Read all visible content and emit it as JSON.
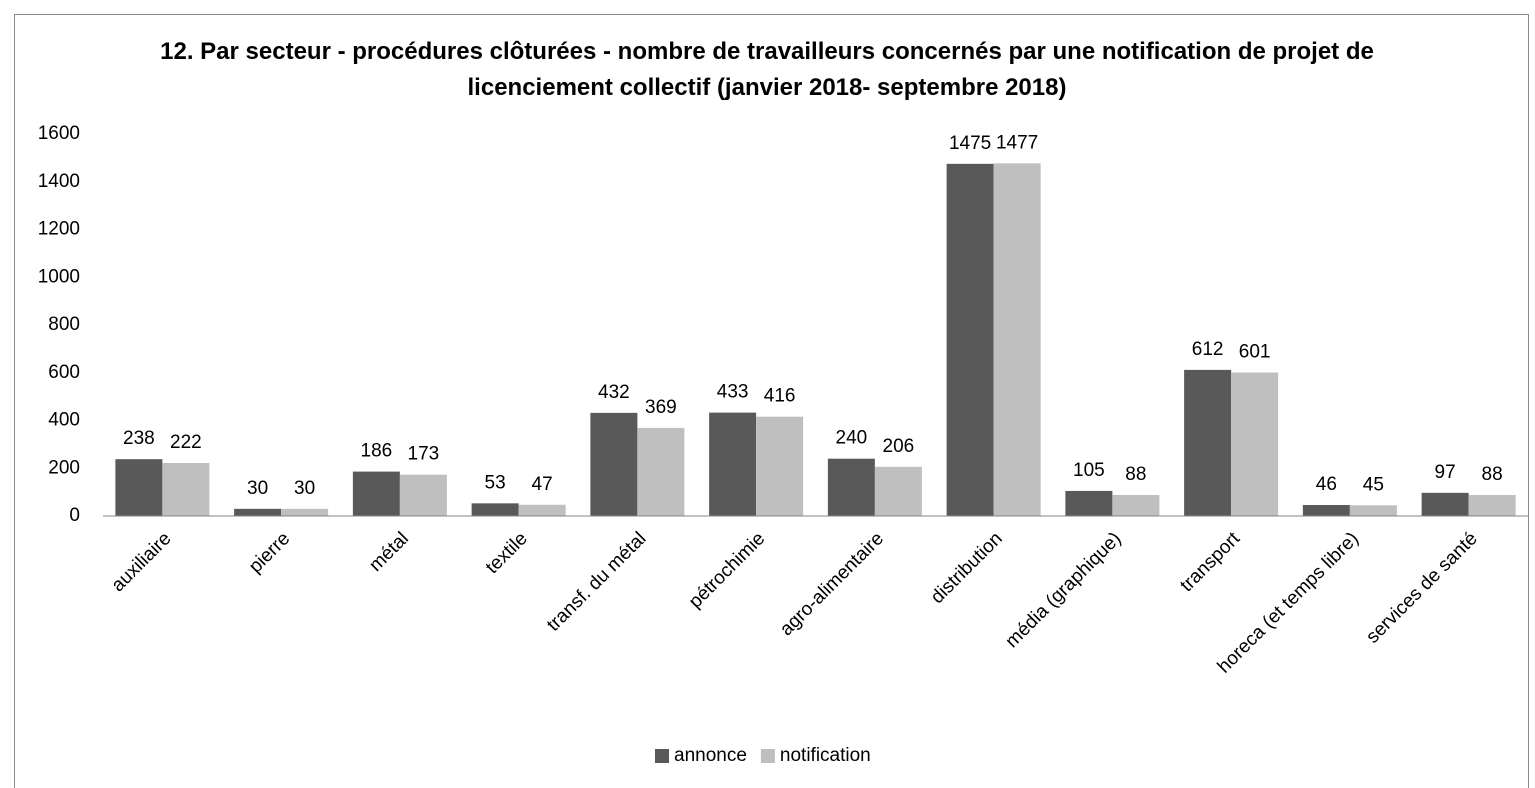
{
  "chart_data": {
    "type": "bar",
    "title": "12. Par secteur - procédures clôturées  - nombre de travailleurs concernés par une notification de projet de licenciement collectif (janvier 2018- septembre 2018)",
    "categories": [
      "auxiliaire",
      "pierre",
      "métal",
      "textile",
      "transf. du métal",
      "pétrochimie",
      "agro-alimentaire",
      "distribution",
      "média (graphique)",
      "transport",
      "horeca (et temps libre)",
      "services de santé"
    ],
    "series": [
      {
        "name": "annonce",
        "color": "#595959",
        "values": [
          238,
          30,
          186,
          53,
          432,
          433,
          240,
          1475,
          105,
          612,
          46,
          97
        ]
      },
      {
        "name": "notification",
        "color": "#bfbfbf",
        "values": [
          222,
          30,
          173,
          47,
          369,
          416,
          206,
          1477,
          88,
          601,
          45,
          88
        ]
      }
    ],
    "ylim": [
      0,
      1600
    ],
    "yticks": [
      0,
      200,
      400,
      600,
      800,
      1000,
      1200,
      1400,
      1600
    ],
    "grid": false,
    "legend": "bottom"
  }
}
